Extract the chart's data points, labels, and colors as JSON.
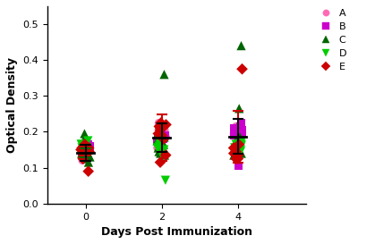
{
  "title": "",
  "xlabel": "Days Post Immunization",
  "ylabel": "Optical Density",
  "xlim": [
    -1.0,
    5.8
  ],
  "ylim": [
    0.0,
    0.55
  ],
  "yticks": [
    0.0,
    0.1,
    0.2,
    0.3,
    0.4,
    0.5
  ],
  "xticks": [
    0,
    2,
    4
  ],
  "groups": [
    "A",
    "B",
    "C",
    "D",
    "E"
  ],
  "group_colors": [
    "#FF69B4",
    "#CC00CC",
    "#006400",
    "#00CC00",
    "#CC0000"
  ],
  "group_markers": [
    "o",
    "s",
    "^",
    "v",
    "D"
  ],
  "group_markersizes": [
    7,
    7,
    8,
    8,
    7
  ],
  "days": [
    0,
    2,
    4
  ],
  "data": {
    "A": {
      "0": [
        0.14,
        0.155,
        0.13,
        0.16,
        0.12,
        0.155,
        0.145,
        0.155,
        0.165,
        0.15
      ],
      "2": [
        0.155,
        0.185,
        0.205,
        0.195,
        0.225,
        0.175,
        0.165,
        0.215,
        0.19,
        0.21
      ],
      "4": [
        0.205,
        0.195,
        0.215,
        0.185,
        0.19,
        0.205,
        0.195,
        0.18,
        0.2,
        0.195
      ]
    },
    "B": {
      "0": [
        0.155,
        0.165,
        0.145,
        0.16,
        0.15,
        0.165,
        0.155,
        0.15,
        0.16,
        0.155
      ],
      "2": [
        0.185,
        0.195,
        0.175,
        0.19,
        0.195,
        0.18,
        0.185,
        0.19,
        0.185,
        0.18
      ],
      "4": [
        0.195,
        0.215,
        0.205,
        0.225,
        0.105,
        0.195,
        0.19,
        0.2,
        0.21,
        0.195
      ]
    },
    "C": {
      "0": [
        0.195,
        0.175,
        0.115,
        0.135,
        0.145,
        0.125,
        0.155,
        0.165,
        0.14,
        0.13
      ],
      "2": [
        0.36,
        0.145,
        0.175,
        0.135,
        0.155,
        0.165,
        0.185,
        0.195,
        0.14,
        0.155
      ],
      "4": [
        0.44,
        0.145,
        0.165,
        0.135,
        0.155,
        0.175,
        0.185,
        0.265,
        0.14,
        0.15
      ]
    },
    "D": {
      "0": [
        0.165,
        0.155,
        0.145,
        0.135,
        0.175,
        0.16,
        0.15,
        0.155,
        0.165,
        0.155
      ],
      "2": [
        0.155,
        0.145,
        0.165,
        0.135,
        0.065,
        0.175,
        0.16,
        0.15,
        0.16,
        0.155
      ],
      "4": [
        0.165,
        0.155,
        0.175,
        0.145,
        0.165,
        0.16,
        0.15,
        0.155,
        0.165,
        0.155
      ]
    },
    "E": {
      "0": [
        0.09,
        0.145,
        0.135,
        0.155,
        0.125,
        0.165,
        0.145,
        0.155,
        0.15,
        0.14
      ],
      "2": [
        0.225,
        0.215,
        0.195,
        0.115,
        0.135,
        0.205,
        0.19,
        0.18,
        0.21,
        0.22
      ],
      "4": [
        0.375,
        0.145,
        0.135,
        0.125,
        0.145,
        0.155,
        0.165,
        0.125,
        0.14,
        0.135
      ]
    }
  },
  "means": {
    "0": 0.141,
    "2": 0.183,
    "4": 0.187
  },
  "sds": {
    "0": 0.022,
    "2": 0.04,
    "4": 0.048
  },
  "sd2_colors": {
    "0": "#006400",
    "2": "#CC0000",
    "4": "#CC0000"
  },
  "sd2_values": {
    "0": 0.012,
    "2": 0.065,
    "4": 0.072
  },
  "jitter_scale": 0.12,
  "background_color": "#ffffff"
}
